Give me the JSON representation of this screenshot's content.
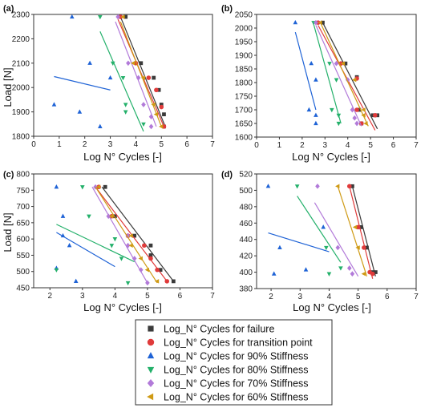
{
  "colors": {
    "failure": "#3a3a3a",
    "transition": "#e03a3a",
    "s90": "#1f63d6",
    "s80": "#23b06a",
    "s70": "#b27ad9",
    "s60": "#cf9a14"
  },
  "legend": [
    {
      "key": "failure",
      "marker": "square",
      "label": "Log_N° Cycles for failure"
    },
    {
      "key": "transition",
      "marker": "circle",
      "label": "Log_N° Cycles for transition point"
    },
    {
      "key": "s90",
      "marker": "tri-up",
      "label": "Log_N° Cycles for 90% Stiffness"
    },
    {
      "key": "s80",
      "marker": "tri-down",
      "label": "Log_N° Cycles for 80% Stiffness"
    },
    {
      "key": "s70",
      "marker": "diamond",
      "label": "Log_N° Cycles for 70% Stiffness"
    },
    {
      "key": "s60",
      "marker": "tri-left",
      "label": "Log_N° Cycles for 60% Stiffness"
    }
  ],
  "chart_data": [
    {
      "type": "scatter",
      "panel_label": "(a)",
      "xlabel": "Log N° Cycles [-]",
      "ylabel": "Load [N]",
      "xlim": [
        0,
        7
      ],
      "ylim": [
        1800,
        2300
      ],
      "xticks": [
        0,
        1,
        2,
        3,
        4,
        5,
        6,
        7
      ],
      "yticks": [
        1800,
        1900,
        2000,
        2100,
        2200,
        2300
      ],
      "series": [
        {
          "key": "failure",
          "points": [
            [
              3.6,
              2290
            ],
            [
              4.2,
              2100
            ],
            [
              4.7,
              2040
            ],
            [
              4.9,
              1990
            ],
            [
              5.0,
              1930
            ],
            [
              5.1,
              1890
            ],
            [
              5.1,
              1840
            ]
          ],
          "fit": [
            [
              3.4,
              2290
            ],
            [
              5.15,
              1840
            ]
          ]
        },
        {
          "key": "transition",
          "points": [
            [
              3.4,
              2290
            ],
            [
              4.0,
              2100
            ],
            [
              4.5,
              2040
            ],
            [
              4.8,
              1990
            ],
            [
              5.0,
              1920
            ],
            [
              5.1,
              1840
            ]
          ],
          "fit": [
            [
              3.3,
              2280
            ],
            [
              5.1,
              1840
            ]
          ]
        },
        {
          "key": "s90",
          "points": [
            [
              1.5,
              2290
            ],
            [
              2.2,
              2100
            ],
            [
              3.0,
              2040
            ],
            [
              0.8,
              1930
            ],
            [
              1.8,
              1900
            ],
            [
              2.6,
              1840
            ]
          ],
          "fit": [
            [
              0.8,
              2045
            ],
            [
              3.0,
              1990
            ]
          ]
        },
        {
          "key": "s80",
          "points": [
            [
              2.6,
              2290
            ],
            [
              3.1,
              2100
            ],
            [
              3.5,
              2040
            ],
            [
              3.6,
              1930
            ],
            [
              3.6,
              1900
            ],
            [
              4.3,
              1850
            ]
          ],
          "fit": [
            [
              2.6,
              2230
            ],
            [
              4.3,
              1820
            ]
          ]
        },
        {
          "key": "s70",
          "points": [
            [
              3.3,
              2290
            ],
            [
              3.7,
              2100
            ],
            [
              4.1,
              2040
            ],
            [
              4.3,
              1930
            ],
            [
              4.6,
              1880
            ],
            [
              4.6,
              1840
            ]
          ],
          "fit": [
            [
              3.2,
              2270
            ],
            [
              4.8,
              1840
            ]
          ]
        },
        {
          "key": "s60",
          "points": [
            [
              3.5,
              2290
            ],
            [
              3.9,
              2100
            ],
            [
              4.3,
              2040
            ],
            [
              4.7,
              1930
            ],
            [
              4.8,
              1890
            ],
            [
              5.0,
              1840
            ]
          ],
          "fit": [
            [
              3.4,
              2270
            ],
            [
              5.0,
              1840
            ]
          ]
        }
      ]
    },
    {
      "type": "scatter",
      "panel_label": "(b)",
      "xlabel": "Log N° Cycles [-]",
      "ylabel": "",
      "xlim": [
        0,
        7
      ],
      "ylim": [
        1600,
        2050
      ],
      "xticks": [
        0,
        1,
        2,
        3,
        4,
        5,
        6,
        7
      ],
      "yticks": [
        1600,
        1650,
        1700,
        1750,
        1800,
        1850,
        1900,
        1950,
        2000,
        2050
      ],
      "series": [
        {
          "key": "failure",
          "points": [
            [
              2.9,
              2020
            ],
            [
              3.9,
              1870
            ],
            [
              4.4,
              1820
            ],
            [
              4.5,
              1700
            ],
            [
              5.1,
              1680
            ],
            [
              5.3,
              1680
            ],
            [
              4.6,
              1650
            ]
          ],
          "fit": [
            [
              2.9,
              2020
            ],
            [
              5.3,
              1630
            ]
          ]
        },
        {
          "key": "transition",
          "points": [
            [
              2.7,
              2020
            ],
            [
              3.7,
              1870
            ],
            [
              4.4,
              1815
            ],
            [
              4.4,
              1700
            ],
            [
              5.2,
              1680
            ],
            [
              4.6,
              1650
            ]
          ],
          "fit": [
            [
              2.7,
              2010
            ],
            [
              5.2,
              1625
            ]
          ]
        },
        {
          "key": "s90",
          "points": [
            [
              1.7,
              2020
            ],
            [
              2.4,
              1870
            ],
            [
              2.6,
              1810
            ],
            [
              2.3,
              1700
            ],
            [
              2.6,
              1680
            ],
            [
              2.6,
              1650
            ]
          ],
          "fit": [
            [
              1.7,
              1985
            ],
            [
              2.6,
              1700
            ]
          ]
        },
        {
          "key": "s80",
          "points": [
            [
              2.5,
              2020
            ],
            [
              3.2,
              1870
            ],
            [
              3.5,
              1810
            ],
            [
              3.3,
              1700
            ],
            [
              3.6,
              1680
            ],
            [
              3.6,
              1650
            ]
          ],
          "fit": [
            [
              2.5,
              2015
            ],
            [
              3.7,
              1650
            ]
          ]
        },
        {
          "key": "s70",
          "points": [
            [
              2.6,
              2020
            ],
            [
              3.5,
              1870
            ],
            [
              4.0,
              1810
            ],
            [
              4.2,
              1700
            ],
            [
              4.3,
              1670
            ],
            [
              4.4,
              1650
            ]
          ],
          "fit": [
            [
              2.6,
              2010
            ],
            [
              4.6,
              1640
            ]
          ]
        },
        {
          "key": "s60",
          "points": [
            [
              2.8,
              2020
            ],
            [
              3.8,
              1870
            ],
            [
              4.3,
              1810
            ],
            [
              4.7,
              1700
            ],
            [
              4.7,
              1680
            ],
            [
              4.8,
              1650
            ]
          ],
          "fit": [
            [
              2.8,
              2020
            ],
            [
              4.9,
              1640
            ]
          ]
        }
      ]
    },
    {
      "type": "scatter",
      "panel_label": "(c)",
      "xlabel": "Log N° Cycles [-]",
      "ylabel": "Load [N]",
      "xlim": [
        1.5,
        7
      ],
      "ylim": [
        450,
        800
      ],
      "xticks": [
        2,
        3,
        4,
        5,
        6,
        7
      ],
      "yticks": [
        450,
        500,
        550,
        600,
        650,
        700,
        750,
        800
      ],
      "series": [
        {
          "key": "failure",
          "points": [
            [
              3.7,
              760
            ],
            [
              4.0,
              670
            ],
            [
              4.6,
              610
            ],
            [
              5.1,
              580
            ],
            [
              5.1,
              550
            ],
            [
              5.4,
              505
            ],
            [
              5.8,
              470
            ]
          ],
          "fit": [
            [
              3.6,
              760
            ],
            [
              5.8,
              470
            ]
          ]
        },
        {
          "key": "transition",
          "points": [
            [
              3.5,
              760
            ],
            [
              3.9,
              670
            ],
            [
              4.4,
              610
            ],
            [
              4.9,
              580
            ],
            [
              5.1,
              540
            ],
            [
              5.3,
              505
            ],
            [
              5.6,
              470
            ]
          ],
          "fit": [
            [
              3.4,
              760
            ],
            [
              5.6,
              470
            ]
          ]
        },
        {
          "key": "s90",
          "points": [
            [
              2.2,
              760
            ],
            [
              2.4,
              670
            ],
            [
              2.4,
              610
            ],
            [
              2.6,
              580
            ],
            [
              2.2,
              510
            ],
            [
              2.8,
              470
            ]
          ],
          "fit": [
            [
              2.2,
              620
            ],
            [
              4.0,
              515
            ]
          ]
        },
        {
          "key": "s80",
          "points": [
            [
              3.0,
              760
            ],
            [
              3.2,
              670
            ],
            [
              4.0,
              600
            ],
            [
              3.9,
              580
            ],
            [
              4.2,
              540
            ],
            [
              2.2,
              505
            ],
            [
              4.4,
              465
            ]
          ],
          "fit": [
            [
              2.2,
              645
            ],
            [
              4.6,
              530
            ]
          ]
        },
        {
          "key": "s70",
          "points": [
            [
              3.4,
              760
            ],
            [
              3.8,
              670
            ],
            [
              4.4,
              610
            ],
            [
              4.4,
              580
            ],
            [
              4.6,
              540
            ],
            [
              4.8,
              505
            ],
            [
              5.0,
              465
            ]
          ],
          "fit": [
            [
              3.3,
              760
            ],
            [
              5.0,
              465
            ]
          ]
        },
        {
          "key": "s60",
          "points": [
            [
              3.5,
              760
            ],
            [
              3.9,
              670
            ],
            [
              4.5,
              610
            ],
            [
              4.5,
              580
            ],
            [
              4.8,
              540
            ],
            [
              5.0,
              505
            ],
            [
              5.3,
              470
            ]
          ],
          "fit": [
            [
              3.4,
              760
            ],
            [
              5.3,
              465
            ]
          ]
        }
      ]
    },
    {
      "type": "scatter",
      "panel_label": "(d)",
      "xlabel": "Log N° Cycles [-]",
      "ylabel": "",
      "xlim": [
        1.5,
        7
      ],
      "ylim": [
        380,
        520
      ],
      "xticks": [
        2,
        3,
        4,
        5,
        6,
        7
      ],
      "yticks": [
        380,
        400,
        420,
        440,
        460,
        480,
        500,
        520
      ],
      "series": [
        {
          "key": "failure",
          "points": [
            [
              4.8,
              505
            ],
            [
              5.1,
              455
            ],
            [
              5.3,
              430
            ],
            [
              5.5,
              400
            ],
            [
              5.6,
              400
            ]
          ],
          "fit": [
            [
              4.8,
              505
            ],
            [
              5.6,
              395
            ]
          ]
        },
        {
          "key": "transition",
          "points": [
            [
              4.7,
              505
            ],
            [
              5.0,
              455
            ],
            [
              5.2,
              430
            ],
            [
              5.4,
              400
            ],
            [
              5.5,
              398
            ]
          ],
          "fit": [
            [
              4.7,
              505
            ],
            [
              5.5,
              392
            ]
          ]
        },
        {
          "key": "s90",
          "points": [
            [
              1.9,
              505
            ],
            [
              3.8,
              455
            ],
            [
              2.3,
              430
            ],
            [
              3.2,
              403
            ],
            [
              2.1,
              398
            ]
          ],
          "fit": [
            [
              1.9,
              448
            ],
            [
              4.0,
              425
            ]
          ]
        },
        {
          "key": "s80",
          "points": [
            [
              2.9,
              505
            ],
            [
              3.9,
              430
            ],
            [
              4.4,
              405
            ],
            [
              4.0,
              398
            ]
          ],
          "fit": [
            [
              2.9,
              493
            ],
            [
              4.4,
              412
            ]
          ]
        },
        {
          "key": "s70",
          "points": [
            [
              3.6,
              505
            ],
            [
              4.3,
              430
            ],
            [
              4.7,
              405
            ],
            [
              4.8,
              398
            ]
          ],
          "fit": [
            [
              3.5,
              485
            ],
            [
              5.0,
              395
            ]
          ]
        },
        {
          "key": "s60",
          "points": [
            [
              4.3,
              505
            ],
            [
              4.9,
              455
            ],
            [
              5.0,
              430
            ],
            [
              5.2,
              398
            ]
          ],
          "fit": [
            [
              4.3,
              505
            ],
            [
              5.3,
              395
            ]
          ]
        }
      ]
    }
  ]
}
